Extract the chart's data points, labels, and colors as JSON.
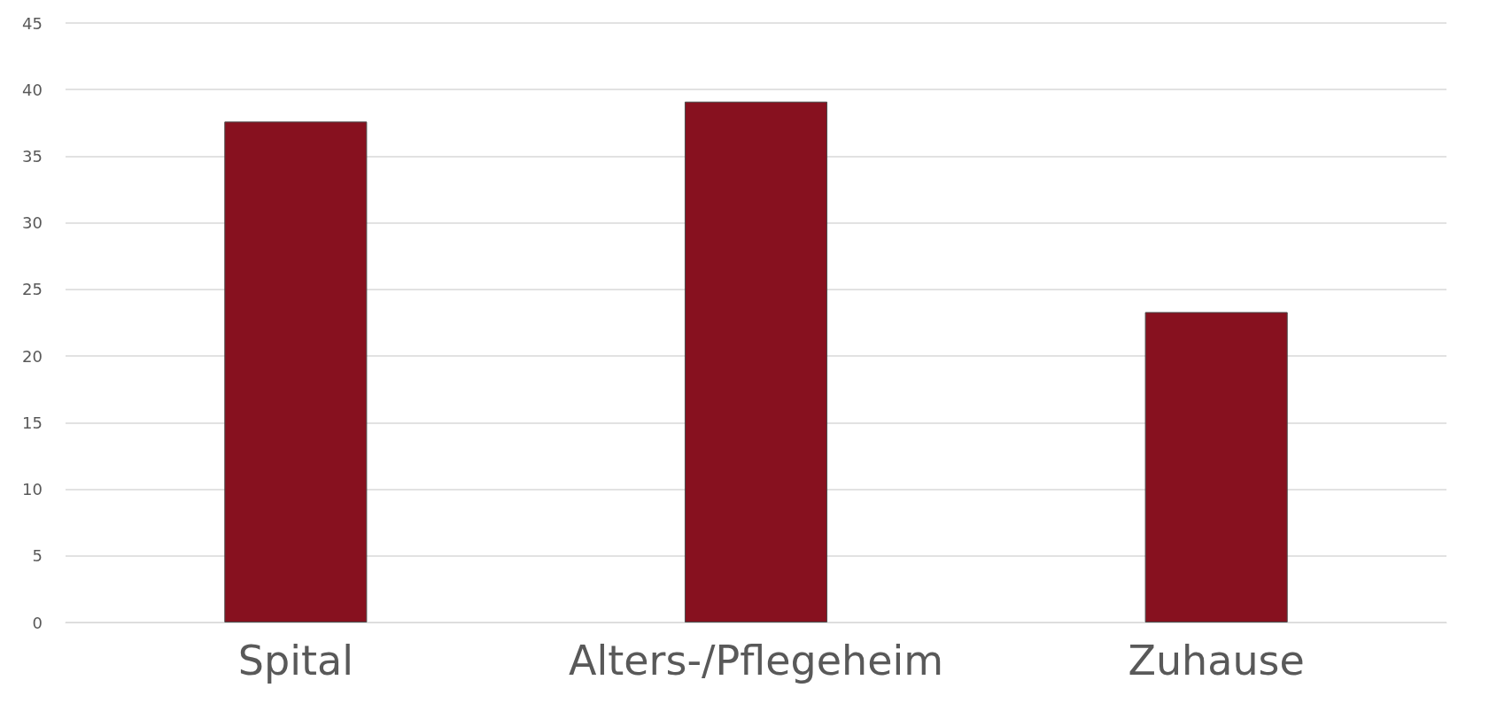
{
  "chart_data": {
    "type": "bar",
    "categories": [
      "Spital",
      "Alters-/Pflegeheim",
      "Zuhause"
    ],
    "values": [
      37.6,
      39.1,
      23.3
    ],
    "color": "#87111f",
    "ylim": [
      0,
      45
    ],
    "yticks": [
      0,
      5,
      10,
      15,
      20,
      25,
      30,
      35,
      40,
      45
    ],
    "grid": "y"
  }
}
